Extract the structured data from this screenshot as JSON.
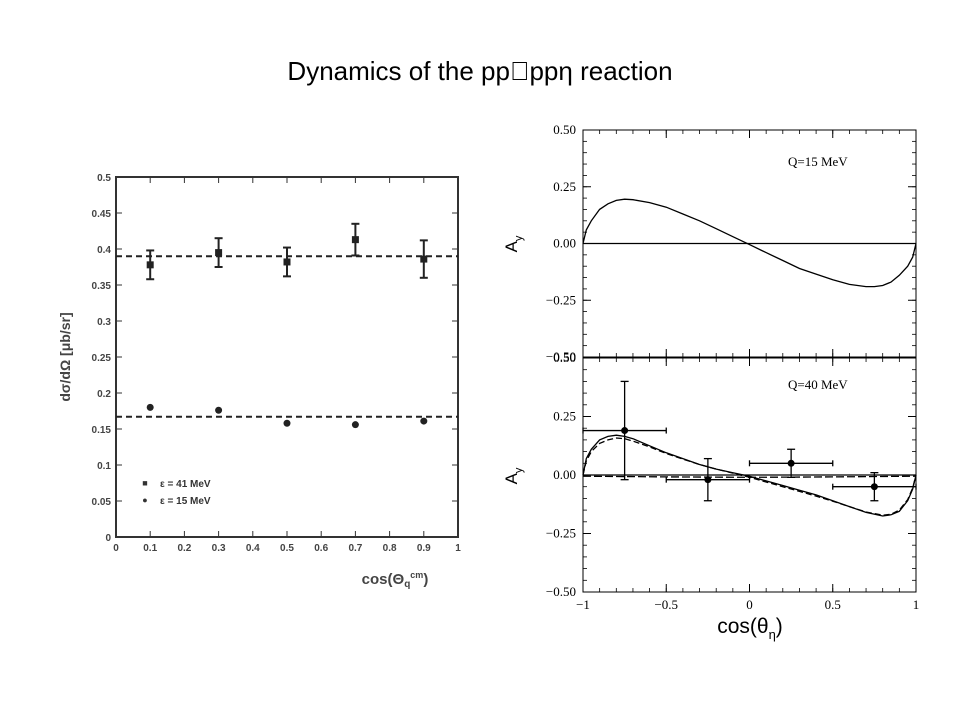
{
  "title": "Dynamics of the pp\u0000ppη reaction",
  "chart_data": [
    {
      "type": "scatter",
      "xlabel": "cos(Θq cm)",
      "ylabel": "dσ/dΩ [μb/sr]",
      "xlim": [
        0,
        1
      ],
      "ylim": [
        0,
        0.5
      ],
      "xticks": [
        "0",
        "0.1",
        "0.2",
        "0.3",
        "0.4",
        "0.5",
        "0.6",
        "0.7",
        "0.8",
        "0.9",
        "1"
      ],
      "yticks": [
        "0",
        "0.05",
        "0.1",
        "0.15",
        "0.2",
        "0.25",
        "0.3",
        "0.35",
        "0.4",
        "0.45",
        "0.5"
      ],
      "legend_position": "bottom-left",
      "series": [
        {
          "name": "ε = 41 MeV",
          "marker": "square",
          "x": [
            0.1,
            0.3,
            0.5,
            0.7,
            0.9
          ],
          "y": [
            0.378,
            0.395,
            0.382,
            0.413,
            0.386
          ],
          "err": [
            0.02,
            0.02,
            0.02,
            0.022,
            0.026
          ],
          "mean": 0.39
        },
        {
          "name": "ε = 15 MeV",
          "marker": "circle",
          "x": [
            0.1,
            0.3,
            0.5,
            0.7,
            0.9
          ],
          "y": [
            0.18,
            0.176,
            0.158,
            0.156,
            0.161
          ],
          "mean": 0.167
        }
      ]
    },
    {
      "type": "line",
      "panel_label": "Q=15 MeV",
      "ylabel": "Ay",
      "xlim": [
        -1,
        1
      ],
      "ylim": [
        -0.5,
        0.5
      ],
      "yticks": [
        "0.50",
        "0.25",
        "0.00",
        "−0.25",
        "−0.50"
      ],
      "curve": {
        "x": [
          -1,
          -0.98,
          -0.95,
          -0.9,
          -0.85,
          -0.8,
          -0.75,
          -0.7,
          -0.6,
          -0.5,
          -0.4,
          -0.3,
          -0.2,
          -0.1,
          0,
          0.1,
          0.2,
          0.3,
          0.4,
          0.5,
          0.6,
          0.7,
          0.75,
          0.8,
          0.85,
          0.9,
          0.95,
          0.98,
          1
        ],
        "y": [
          0,
          0.06,
          0.1,
          0.15,
          0.175,
          0.19,
          0.195,
          0.193,
          0.18,
          0.16,
          0.13,
          0.1,
          0.065,
          0.03,
          -0.005,
          -0.04,
          -0.075,
          -0.11,
          -0.135,
          -0.16,
          -0.18,
          -0.19,
          -0.19,
          -0.185,
          -0.17,
          -0.14,
          -0.1,
          -0.06,
          0
        ]
      }
    },
    {
      "type": "scatter",
      "panel_label": "Q=40 MeV",
      "ylabel": "Ay",
      "xlabel": "cos(θη)",
      "xlim": [
        -1,
        1
      ],
      "ylim": [
        -0.5,
        0.5
      ],
      "xticks": [
        "−1",
        "−0.5",
        "0",
        "0.5",
        "1"
      ],
      "yticks": [
        "0.50",
        "0.25",
        "0.00",
        "−0.25",
        "−0.50"
      ],
      "points": {
        "x": [
          -0.75,
          -0.25,
          0.25,
          0.75
        ],
        "y": [
          0.19,
          -0.02,
          0.05,
          -0.05
        ],
        "xerr": [
          0.25,
          0.25,
          0.25,
          0.25
        ],
        "yerr": [
          0.21,
          0.09,
          0.06,
          0.06
        ]
      },
      "curve_solid": {
        "x": [
          -1,
          -0.98,
          -0.95,
          -0.9,
          -0.85,
          -0.8,
          -0.75,
          -0.7,
          -0.6,
          -0.5,
          -0.4,
          -0.3,
          -0.2,
          -0.1,
          0,
          0.1,
          0.2,
          0.3,
          0.4,
          0.5,
          0.6,
          0.7,
          0.8,
          0.85,
          0.9,
          0.95,
          0.98,
          1
        ],
        "y": [
          0,
          0.07,
          0.11,
          0.15,
          0.165,
          0.17,
          0.165,
          0.155,
          0.125,
          0.095,
          0.07,
          0.045,
          0.025,
          0.01,
          -0.005,
          -0.025,
          -0.045,
          -0.065,
          -0.085,
          -0.11,
          -0.135,
          -0.16,
          -0.175,
          -0.17,
          -0.155,
          -0.11,
          -0.06,
          0
        ]
      },
      "curve_dashed": {
        "x": [
          -1,
          -0.98,
          -0.95,
          -0.9,
          -0.85,
          -0.8,
          -0.75,
          -0.7,
          -0.6,
          -0.5,
          -0.4,
          -0.3,
          -0.2,
          -0.1,
          0,
          0.1,
          0.2,
          0.3,
          0.4,
          0.5,
          0.6,
          0.7,
          0.8,
          0.85,
          0.9,
          0.95,
          0.98,
          1
        ],
        "y": [
          0,
          0.06,
          0.1,
          0.135,
          0.15,
          0.158,
          0.155,
          0.145,
          0.12,
          0.092,
          0.068,
          0.045,
          0.025,
          0.008,
          -0.01,
          -0.03,
          -0.05,
          -0.07,
          -0.09,
          -0.112,
          -0.135,
          -0.158,
          -0.172,
          -0.168,
          -0.15,
          -0.105,
          -0.055,
          0
        ]
      },
      "curve_flat": {
        "x": [
          -1,
          -0.5,
          0,
          0.5,
          1
        ],
        "y": [
          -0.005,
          -0.008,
          -0.01,
          -0.008,
          -0.005
        ]
      }
    }
  ],
  "legend_marker_left": "■",
  "legend_marker_left2": "●",
  "ylabel_right_sub": "y",
  "xlabel_left_main": "cos(Θ",
  "xlabel_left_sub": "q",
  "xlabel_left_sup": "cm",
  "xlabel_left_close": ")",
  "xlabel_right_main": "cos(θ",
  "xlabel_right_sub": "η",
  "xlabel_right_close": ")",
  "ylabel_right_main": "A"
}
